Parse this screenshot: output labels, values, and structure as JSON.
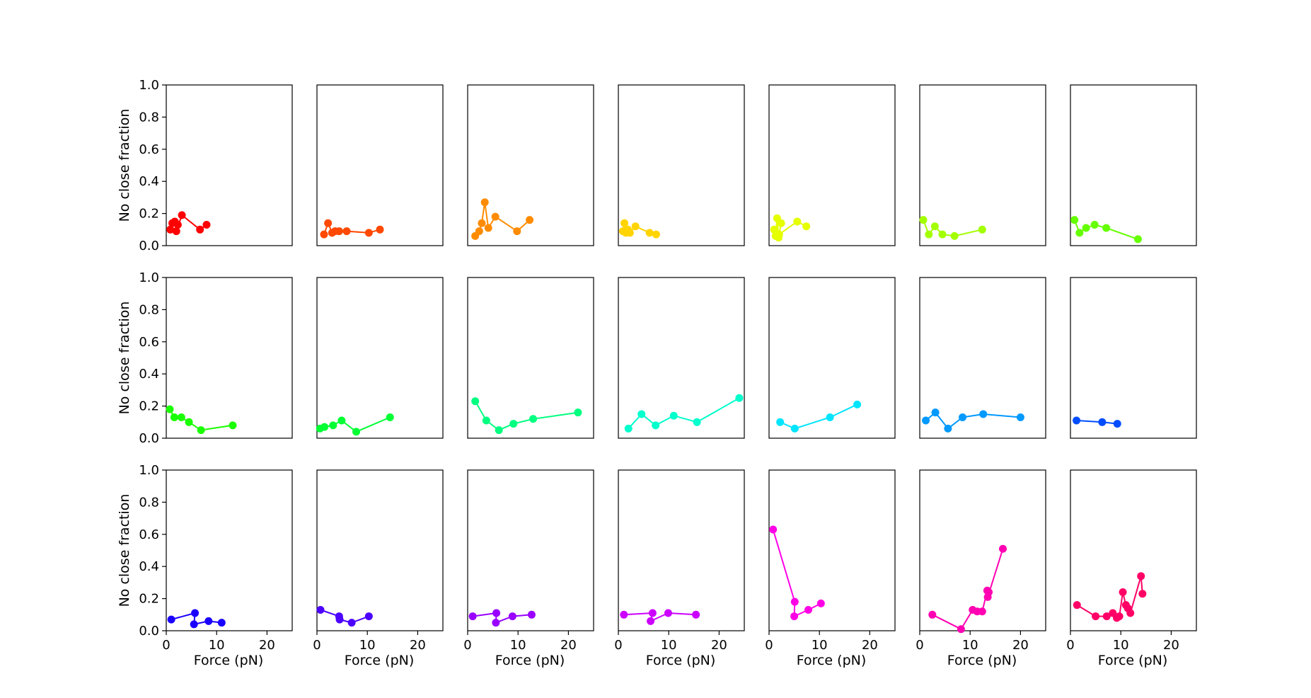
{
  "figure": {
    "grid": "3x7 small multiples",
    "xlabel": "Force (pN)",
    "ylabel": "No close fraction"
  },
  "chart_data": [
    {
      "type": "line",
      "xlim": [
        0,
        25
      ],
      "ylim": [
        0,
        1
      ],
      "xticks": [
        0,
        10,
        20
      ],
      "yticks": [
        0.0,
        0.2,
        0.4,
        0.6,
        0.8,
        1.0
      ],
      "grid": false,
      "color": "#ff0000",
      "x": [
        0.8,
        1.2,
        1.7,
        2.3,
        2.0,
        3.1,
        6.7,
        8.0
      ],
      "y": [
        0.1,
        0.14,
        0.15,
        0.13,
        0.09,
        0.19,
        0.1,
        0.13
      ]
    },
    {
      "type": "line",
      "xlim": [
        0,
        25
      ],
      "ylim": [
        0,
        1
      ],
      "xticks": [
        0,
        10,
        20
      ],
      "yticks": [
        0.0,
        0.2,
        0.4,
        0.6,
        0.8,
        1.0
      ],
      "grid": false,
      "color": "#ff4800",
      "x": [
        1.4,
        2.2,
        3.0,
        3.6,
        4.4,
        5.9,
        10.3,
        12.5
      ],
      "y": [
        0.07,
        0.14,
        0.08,
        0.09,
        0.09,
        0.09,
        0.08,
        0.1
      ]
    },
    {
      "type": "line",
      "xlim": [
        0,
        25
      ],
      "ylim": [
        0,
        1
      ],
      "xticks": [
        0,
        10,
        20
      ],
      "yticks": [
        0.0,
        0.2,
        0.4,
        0.6,
        0.8,
        1.0
      ],
      "grid": false,
      "color": "#ff8c00",
      "x": [
        1.5,
        2.3,
        2.8,
        3.4,
        4.1,
        5.5,
        9.8,
        12.3
      ],
      "y": [
        0.06,
        0.09,
        0.14,
        0.27,
        0.11,
        0.18,
        0.09,
        0.16
      ]
    },
    {
      "type": "line",
      "xlim": [
        0,
        25
      ],
      "ylim": [
        0,
        1
      ],
      "xticks": [
        0,
        10,
        20
      ],
      "yticks": [
        0.0,
        0.2,
        0.4,
        0.6,
        0.8,
        1.0
      ],
      "grid": false,
      "color": "#ffd400",
      "x": [
        0.9,
        1.2,
        1.5,
        1.9,
        2.3,
        3.4,
        6.2,
        7.5
      ],
      "y": [
        0.09,
        0.14,
        0.08,
        0.1,
        0.08,
        0.12,
        0.08,
        0.07
      ]
    },
    {
      "type": "line",
      "xlim": [
        0,
        25
      ],
      "ylim": [
        0,
        1
      ],
      "xticks": [
        0,
        10,
        20
      ],
      "yticks": [
        0.0,
        0.2,
        0.4,
        0.6,
        0.8,
        1.0
      ],
      "grid": false,
      "color": "#e5ff00",
      "x": [
        1.0,
        1.3,
        1.6,
        1.9,
        2.4,
        2.0,
        5.6,
        7.4
      ],
      "y": [
        0.1,
        0.06,
        0.17,
        0.05,
        0.14,
        0.07,
        0.15,
        0.12
      ]
    },
    {
      "type": "line",
      "xlim": [
        0,
        25
      ],
      "ylim": [
        0,
        1
      ],
      "xticks": [
        0,
        10,
        20
      ],
      "yticks": [
        0.0,
        0.2,
        0.4,
        0.6,
        0.8,
        1.0
      ],
      "grid": false,
      "color": "#a3ff00",
      "x": [
        0.7,
        1.8,
        3.0,
        4.5,
        6.9,
        12.4
      ],
      "y": [
        0.16,
        0.07,
        0.12,
        0.07,
        0.06,
        0.1
      ]
    },
    {
      "type": "line",
      "xlim": [
        0,
        25
      ],
      "ylim": [
        0,
        1
      ],
      "xticks": [
        0,
        10,
        20
      ],
      "yticks": [
        0.0,
        0.2,
        0.4,
        0.6,
        0.8,
        1.0
      ],
      "grid": false,
      "color": "#66ff00",
      "x": [
        0.8,
        1.8,
        3.1,
        4.8,
        7.1,
        13.4
      ],
      "y": [
        0.16,
        0.08,
        0.11,
        0.13,
        0.11,
        0.04
      ]
    },
    {
      "type": "line",
      "xlim": [
        0,
        25
      ],
      "ylim": [
        0,
        1
      ],
      "xticks": [
        0,
        10,
        20
      ],
      "yticks": [
        0.0,
        0.2,
        0.4,
        0.6,
        0.8,
        1.0
      ],
      "grid": false,
      "color": "#1aff00",
      "x": [
        0.7,
        1.6,
        3.0,
        4.5,
        6.9,
        13.2
      ],
      "y": [
        0.18,
        0.13,
        0.13,
        0.1,
        0.05,
        0.08
      ]
    },
    {
      "type": "line",
      "xlim": [
        0,
        25
      ],
      "ylim": [
        0,
        1
      ],
      "xticks": [
        0,
        10,
        20
      ],
      "yticks": [
        0.0,
        0.2,
        0.4,
        0.6,
        0.8,
        1.0
      ],
      "grid": false,
      "color": "#00ff33",
      "x": [
        0.6,
        1.5,
        3.2,
        4.9,
        7.8,
        14.5
      ],
      "y": [
        0.06,
        0.07,
        0.08,
        0.11,
        0.04,
        0.13
      ]
    },
    {
      "type": "line",
      "xlim": [
        0,
        25
      ],
      "ylim": [
        0,
        1
      ],
      "xticks": [
        0,
        10,
        20
      ],
      "yticks": [
        0.0,
        0.2,
        0.4,
        0.6,
        0.8,
        1.0
      ],
      "grid": false,
      "color": "#00ff80",
      "x": [
        1.5,
        3.7,
        6.2,
        9.1,
        13.0,
        21.9
      ],
      "y": [
        0.23,
        0.11,
        0.05,
        0.09,
        0.12,
        0.16
      ]
    },
    {
      "type": "line",
      "xlim": [
        0,
        25
      ],
      "ylim": [
        0,
        1
      ],
      "xticks": [
        0,
        10,
        20
      ],
      "yticks": [
        0.0,
        0.2,
        0.4,
        0.6,
        0.8,
        1.0
      ],
      "grid": false,
      "color": "#00ffcc",
      "x": [
        2.0,
        4.6,
        7.4,
        11.0,
        15.6,
        24.0
      ],
      "y": [
        0.06,
        0.15,
        0.08,
        0.14,
        0.1,
        0.25
      ]
    },
    {
      "type": "line",
      "xlim": [
        0,
        25
      ],
      "ylim": [
        0,
        1
      ],
      "xticks": [
        0,
        10,
        20
      ],
      "yticks": [
        0.0,
        0.2,
        0.4,
        0.6,
        0.8,
        1.0
      ],
      "grid": false,
      "color": "#00e5ff",
      "x": [
        2.2,
        5.1,
        12.1,
        17.5
      ],
      "y": [
        0.1,
        0.06,
        0.13,
        0.21
      ]
    },
    {
      "type": "line",
      "xlim": [
        0,
        25
      ],
      "ylim": [
        0,
        1
      ],
      "xticks": [
        0,
        10,
        20
      ],
      "yticks": [
        0.0,
        0.2,
        0.4,
        0.6,
        0.8,
        1.0
      ],
      "grid": false,
      "color": "#0099ff",
      "x": [
        1.2,
        3.1,
        5.6,
        8.5,
        12.6,
        20.0
      ],
      "y": [
        0.11,
        0.16,
        0.06,
        0.13,
        0.15,
        0.13
      ]
    },
    {
      "type": "line",
      "xlim": [
        0,
        25
      ],
      "ylim": [
        0,
        1
      ],
      "xticks": [
        0,
        10,
        20
      ],
      "yticks": [
        0.0,
        0.2,
        0.4,
        0.6,
        0.8,
        1.0
      ],
      "grid": false,
      "color": "#004dff",
      "x": [
        1.2,
        6.3,
        9.3
      ],
      "y": [
        0.11,
        0.1,
        0.09
      ]
    },
    {
      "type": "line",
      "xlim": [
        0,
        25
      ],
      "ylim": [
        0,
        1
      ],
      "xticks": [
        0,
        10,
        20
      ],
      "yticks": [
        0.0,
        0.2,
        0.4,
        0.6,
        0.8,
        1.0
      ],
      "grid": false,
      "color": "#1a00ff",
      "x": [
        1.0,
        5.7,
        5.5,
        8.4,
        11.0
      ],
      "y": [
        0.07,
        0.11,
        0.04,
        0.06,
        0.05
      ]
    },
    {
      "type": "line",
      "xlim": [
        0,
        25
      ],
      "ylim": [
        0,
        1
      ],
      "xticks": [
        0,
        10,
        20
      ],
      "yticks": [
        0.0,
        0.2,
        0.4,
        0.6,
        0.8,
        1.0
      ],
      "grid": false,
      "color": "#4c00ff",
      "x": [
        0.7,
        4.4,
        4.5,
        6.9,
        10.3
      ],
      "y": [
        0.13,
        0.09,
        0.07,
        0.05,
        0.09
      ]
    },
    {
      "type": "line",
      "xlim": [
        0,
        25
      ],
      "ylim": [
        0,
        1
      ],
      "xticks": [
        0,
        10,
        20
      ],
      "yticks": [
        0.0,
        0.2,
        0.4,
        0.6,
        0.8,
        1.0
      ],
      "grid": false,
      "color": "#9900ff",
      "x": [
        1.0,
        5.7,
        5.6,
        8.9,
        12.7
      ],
      "y": [
        0.09,
        0.11,
        0.05,
        0.09,
        0.1
      ]
    },
    {
      "type": "line",
      "xlim": [
        0,
        25
      ],
      "ylim": [
        0,
        1
      ],
      "xticks": [
        0,
        10,
        20
      ],
      "yticks": [
        0.0,
        0.2,
        0.4,
        0.6,
        0.8,
        1.0
      ],
      "grid": false,
      "color": "#cc00ff",
      "x": [
        1.1,
        6.8,
        6.4,
        9.9,
        15.4
      ],
      "y": [
        0.1,
        0.11,
        0.06,
        0.11,
        0.1
      ]
    },
    {
      "type": "line",
      "xlim": [
        0,
        25
      ],
      "ylim": [
        0,
        1
      ],
      "xticks": [
        0,
        10,
        20
      ],
      "yticks": [
        0.0,
        0.2,
        0.4,
        0.6,
        0.8,
        1.0
      ],
      "grid": false,
      "color": "#ff00e6",
      "x": [
        0.8,
        5.1,
        5.0,
        7.8,
        10.3
      ],
      "y": [
        0.63,
        0.18,
        0.09,
        0.13,
        0.17
      ]
    },
    {
      "type": "line",
      "xlim": [
        0,
        25
      ],
      "ylim": [
        0,
        1
      ],
      "xticks": [
        0,
        10,
        20
      ],
      "yticks": [
        0.0,
        0.2,
        0.4,
        0.6,
        0.8,
        1.0
      ],
      "grid": false,
      "color": "#ff00b3",
      "x": [
        2.5,
        8.2,
        10.5,
        11.4,
        12.4,
        13.4,
        13.7,
        13.5,
        16.5
      ],
      "y": [
        0.1,
        0.01,
        0.13,
        0.12,
        0.12,
        0.25,
        0.24,
        0.21,
        0.51
      ]
    },
    {
      "type": "line",
      "xlim": [
        0,
        25
      ],
      "ylim": [
        0,
        1
      ],
      "xticks": [
        0,
        10,
        20
      ],
      "yticks": [
        0.0,
        0.2,
        0.4,
        0.6,
        0.8,
        1.0
      ],
      "grid": false,
      "color": "#ff0066",
      "x": [
        1.3,
        5.0,
        7.2,
        8.4,
        9.2,
        9.7,
        10.4,
        11.0,
        11.4,
        11.9,
        14.0,
        14.3
      ],
      "y": [
        0.16,
        0.09,
        0.09,
        0.11,
        0.08,
        0.09,
        0.24,
        0.16,
        0.14,
        0.11,
        0.34,
        0.23
      ]
    }
  ]
}
